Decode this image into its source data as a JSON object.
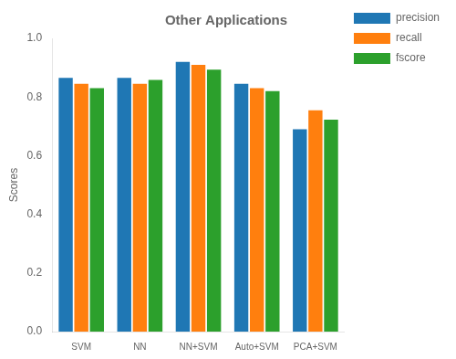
{
  "chart_data": {
    "type": "bar",
    "title": "Other Applications",
    "ylabel": "Scores",
    "categories": [
      "SVM",
      "NN",
      "NN+SVM",
      "Auto+SVM",
      "PCA+SVM"
    ],
    "series": [
      {
        "name": "precision",
        "color": "#1f77b4",
        "values": [
          0.865,
          0.865,
          0.92,
          0.845,
          0.69
        ]
      },
      {
        "name": "recall",
        "color": "#ff7f0e",
        "values": [
          0.845,
          0.845,
          0.91,
          0.83,
          0.755
        ]
      },
      {
        "name": "fscore",
        "color": "#2ca02c",
        "values": [
          0.83,
          0.858,
          0.893,
          0.82,
          0.723
        ]
      }
    ],
    "ylim": [
      0.0,
      1.0
    ],
    "yticks": [
      {
        "value": 0,
        "label": "0.0"
      },
      0.2,
      0.4,
      0.6,
      0.8,
      {
        "value": 1,
        "label": "1.0"
      }
    ],
    "grid": false,
    "legend": "right"
  }
}
